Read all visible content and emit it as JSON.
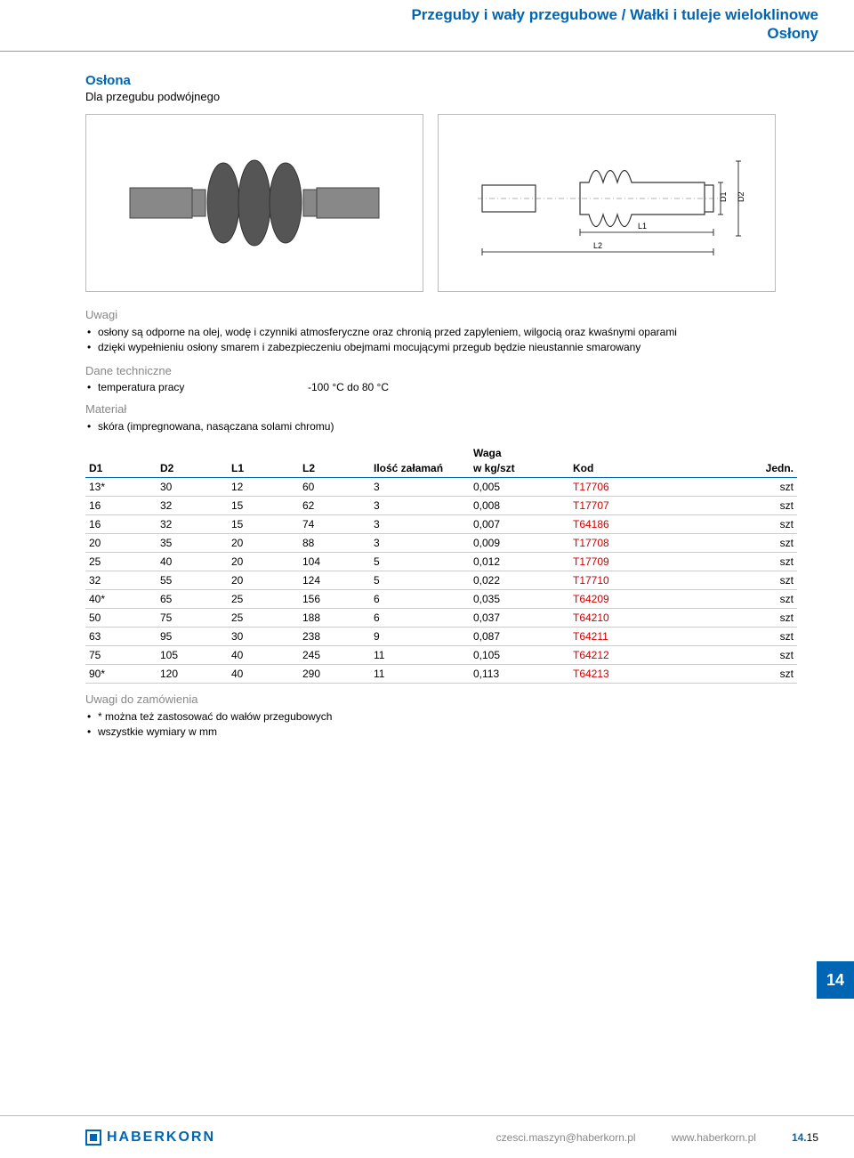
{
  "header": {
    "line1": "Przeguby i wały przegubowe / Wałki i tuleje wieloklinowe",
    "line2": "Osłony",
    "color": "#0066b3"
  },
  "product": {
    "title": "Osłona",
    "subtitle": "Dla przegubu podwójnego"
  },
  "diagram_labels": {
    "D1": "D1",
    "D2": "D2",
    "L1": "L1",
    "L2": "L2"
  },
  "uwagi": {
    "heading": "Uwagi",
    "items": [
      "osłony są odporne na olej, wodę i czynniki atmosferyczne oraz chronią przed zapyleniem, wilgocią oraz kwaśnymi oparami",
      "dzięki wypełnieniu osłony smarem i zabezpieczeniu obejmami mocującymi przegub będzie nieustannie smarowany"
    ]
  },
  "dane_tech": {
    "heading": "Dane techniczne",
    "label": "temperatura pracy",
    "value": "-100 °C do 80 °C"
  },
  "material": {
    "heading": "Materiał",
    "items": [
      "skóra (impregnowana, nasączana solami chromu)"
    ]
  },
  "table": {
    "columns": [
      "D1",
      "D2",
      "L1",
      "L2",
      "Ilość załamań",
      "Waga\nw kg/szt",
      "Kod",
      "Jedn."
    ],
    "waga_top": "Waga",
    "waga_bottom": "w kg/szt",
    "rows": [
      [
        "13*",
        "30",
        "12",
        "60",
        "3",
        "0,005",
        "T17706",
        "szt"
      ],
      [
        "16",
        "32",
        "15",
        "62",
        "3",
        "0,008",
        "T17707",
        "szt"
      ],
      [
        "16",
        "32",
        "15",
        "74",
        "3",
        "0,007",
        "T64186",
        "szt"
      ],
      [
        "20",
        "35",
        "20",
        "88",
        "3",
        "0,009",
        "T17708",
        "szt"
      ],
      [
        "25",
        "40",
        "20",
        "104",
        "5",
        "0,012",
        "T17709",
        "szt"
      ],
      [
        "32",
        "55",
        "20",
        "124",
        "5",
        "0,022",
        "T17710",
        "szt"
      ],
      [
        "40*",
        "65",
        "25",
        "156",
        "6",
        "0,035",
        "T64209",
        "szt"
      ],
      [
        "50",
        "75",
        "25",
        "188",
        "6",
        "0,037",
        "T64210",
        "szt"
      ],
      [
        "63",
        "95",
        "30",
        "238",
        "9",
        "0,087",
        "T64211",
        "szt"
      ],
      [
        "75",
        "105",
        "40",
        "245",
        "11",
        "0,105",
        "T64212",
        "szt"
      ],
      [
        "90*",
        "120",
        "40",
        "290",
        "11",
        "0,113",
        "T64213",
        "szt"
      ]
    ],
    "col_widths": [
      "10%",
      "10%",
      "10%",
      "10%",
      "14%",
      "14%",
      "20%",
      "8%"
    ],
    "kod_color": "#cc0000",
    "header_border": "#0066b3"
  },
  "uwagi_zamowienia": {
    "heading": "Uwagi do zamówienia",
    "items": [
      "* można też zastosować do wałów przegubowych",
      "wszystkie wymiary w mm"
    ]
  },
  "side_tab": "14",
  "footer": {
    "logo": "HABERKORN",
    "email": "czesci.maszyn@haberkorn.pl",
    "url": "www.haberkorn.pl",
    "page_prefix": "14.",
    "page_num": "15",
    "logo_color": "#0066b3"
  }
}
